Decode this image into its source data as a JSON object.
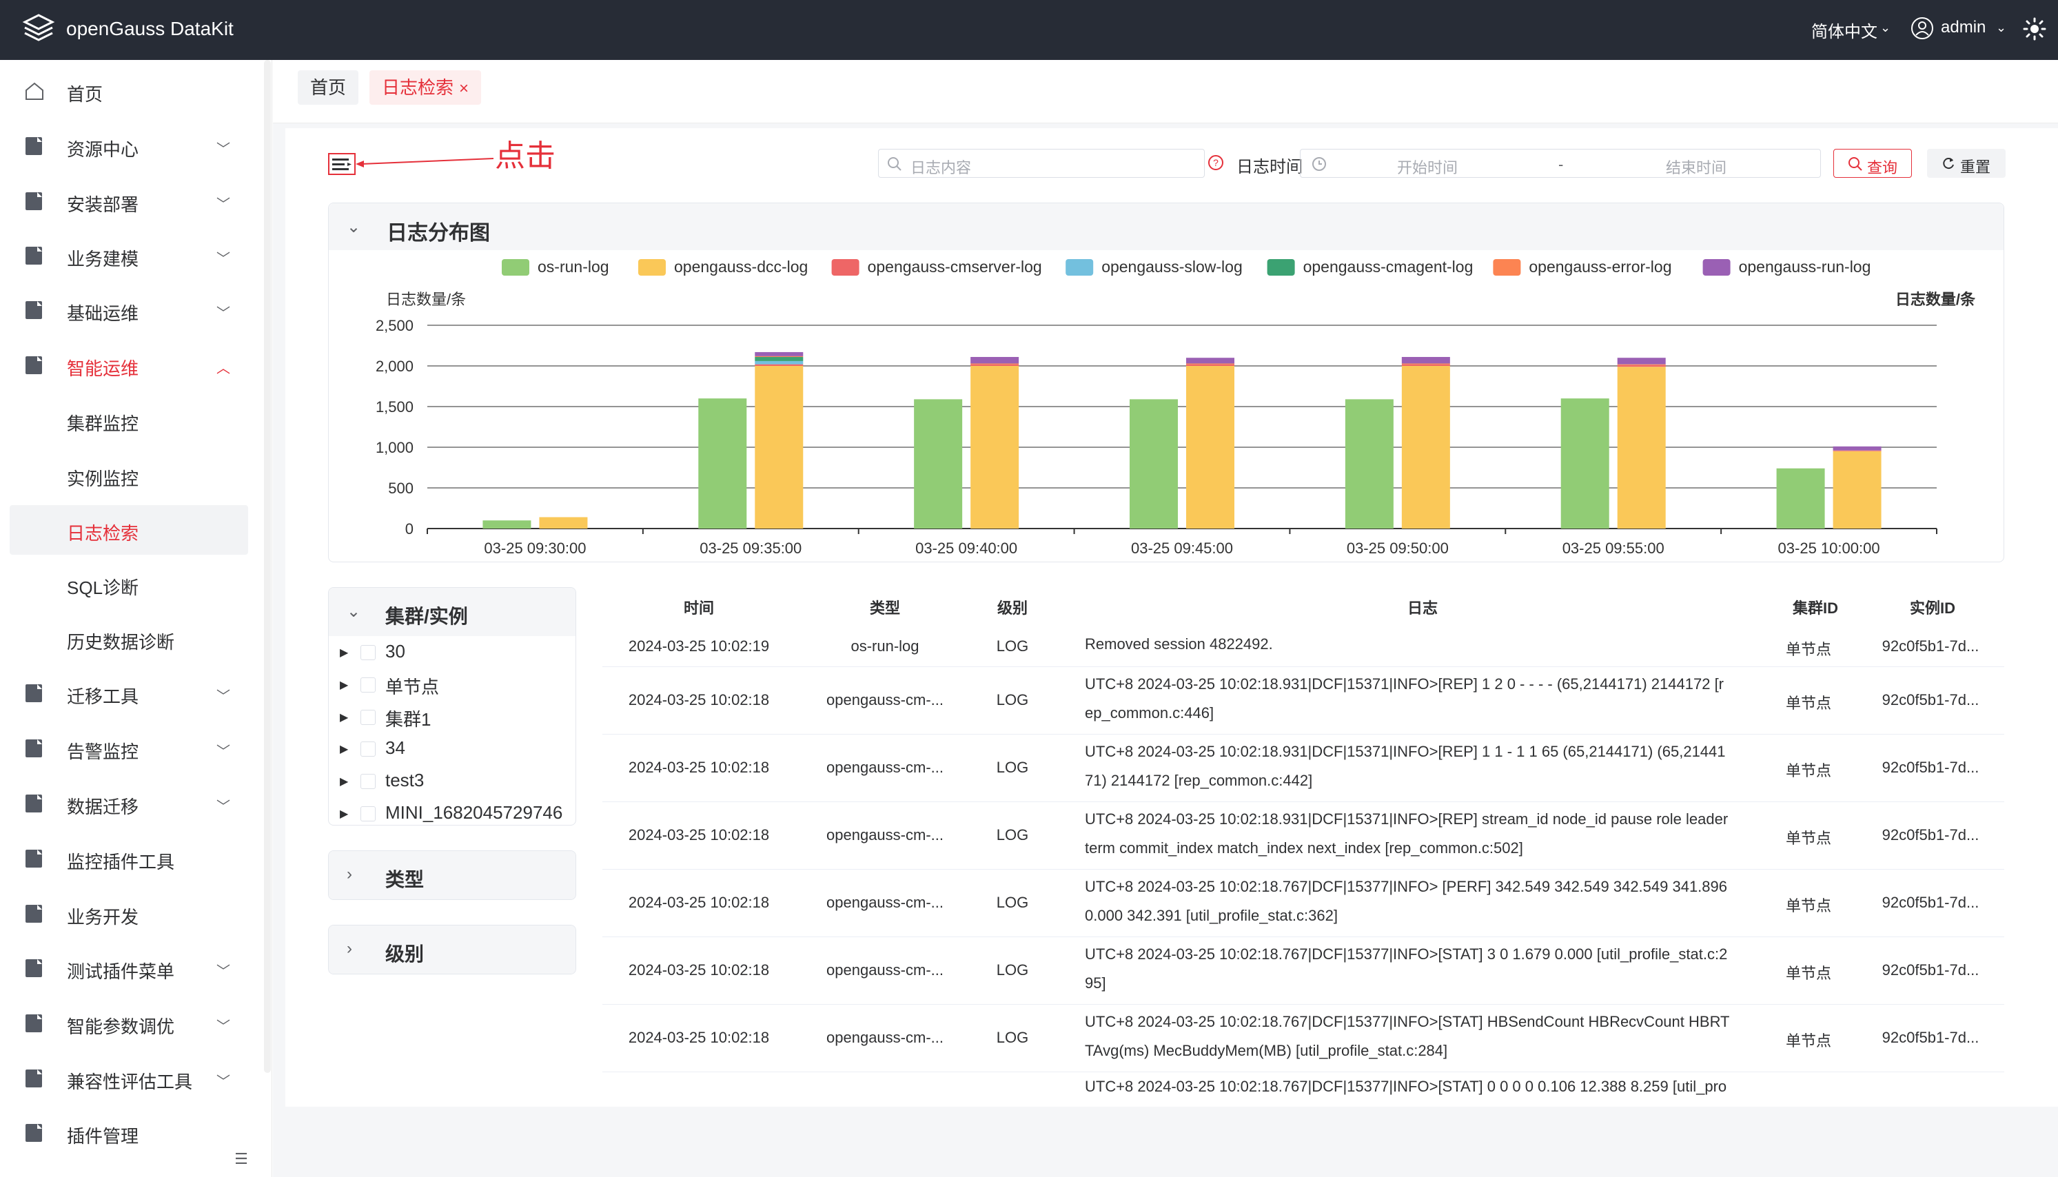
{
  "header": {
    "app_title": "openGauss DataKit",
    "language": "简体中文",
    "user": "admin"
  },
  "sidebar": {
    "items": [
      {
        "label": "首页"
      },
      {
        "label": "资源中心"
      },
      {
        "label": "安装部署"
      },
      {
        "label": "业务建模"
      },
      {
        "label": "基础运维"
      },
      {
        "label": "智能运维"
      },
      {
        "label": "集群监控"
      },
      {
        "label": "实例监控"
      },
      {
        "label": "日志检索"
      },
      {
        "label": "SQL诊断"
      },
      {
        "label": "历史数据诊断"
      },
      {
        "label": "迁移工具"
      },
      {
        "label": "告警监控"
      },
      {
        "label": "数据迁移"
      },
      {
        "label": "监控插件工具"
      },
      {
        "label": "业务开发"
      },
      {
        "label": "测试插件菜单"
      },
      {
        "label": "智能参数调优"
      },
      {
        "label": "兼容性评估工具"
      },
      {
        "label": "插件管理"
      }
    ]
  },
  "tabs": {
    "home": "首页",
    "log_search": "日志检索",
    "close": "×"
  },
  "toolbar": {
    "annotation": "点击",
    "search_placeholder": "日志内容",
    "time_label": "日志时间",
    "start_placeholder": "开始时间",
    "separator": "-",
    "end_placeholder": "结束时间",
    "query": "查询",
    "reset": "重置"
  },
  "chart_panel": {
    "title": "日志分布图"
  },
  "chart_data": {
    "type": "bar",
    "ylabel_left": "日志数量/条",
    "ylabel_right": "日志数量/条",
    "ylim": [
      0,
      2500
    ],
    "yticks": [
      "2,500",
      "2,000",
      "1,500",
      "1,000",
      "500",
      "0"
    ],
    "categories": [
      "03-25 09:30:00",
      "03-25 09:35:00",
      "03-25 09:40:00",
      "03-25 09:45:00",
      "03-25 09:50:00",
      "03-25 09:55:00",
      "03-25 10:00:00"
    ],
    "legend_position": "top",
    "series": [
      {
        "name": "os-run-log",
        "color": "#91cc75",
        "values": [
          100,
          1600,
          1590,
          1590,
          1590,
          1600,
          740
        ]
      },
      {
        "name": "opengauss-dcc-log",
        "color": "#fac858",
        "values": [
          140,
          2000,
          2000,
          2000,
          2000,
          1990,
          950
        ]
      },
      {
        "name": "opengauss-cmserver-log",
        "color": "#ee6666",
        "values": [
          0,
          20,
          20,
          20,
          20,
          20,
          5
        ]
      },
      {
        "name": "opengauss-slow-log",
        "color": "#73c0de",
        "values": [
          0,
          40,
          0,
          0,
          0,
          0,
          0
        ]
      },
      {
        "name": "opengauss-cmagent-log",
        "color": "#3ba272",
        "values": [
          0,
          50,
          0,
          0,
          0,
          0,
          0
        ]
      },
      {
        "name": "opengauss-error-log",
        "color": "#fc8452",
        "values": [
          0,
          10,
          10,
          10,
          10,
          10,
          5
        ]
      },
      {
        "name": "opengauss-run-log",
        "color": "#9a60b4",
        "values": [
          0,
          50,
          80,
          70,
          80,
          80,
          50
        ]
      }
    ]
  },
  "filters": {
    "cluster": {
      "title": "集群/实例",
      "items": [
        "30",
        "单节点",
        "集群1",
        "34",
        "test3",
        "MINI_1682045729746"
      ]
    },
    "type_title": "类型",
    "level_title": "级别"
  },
  "table": {
    "headers": [
      "时间",
      "类型",
      "级别",
      "日志",
      "集群ID",
      "实例ID"
    ],
    "rows": [
      {
        "time": "2024-03-25 10:02:19",
        "type": "os-run-log",
        "level": "LOG",
        "log1": "Removed session 4822492.",
        "log2": "",
        "cluster": "单节点",
        "instance": "92c0f5b1-7d..."
      },
      {
        "time": "2024-03-25 10:02:18",
        "type": "opengauss-cm-...",
        "level": "LOG",
        "log1": "UTC+8 2024-03-25 10:02:18.931|DCF|15371|INFO>[REP] 1 2 0 - - - - (65,2144171) 2144172 [r",
        "log2": "ep_common.c:446]",
        "cluster": "单节点",
        "instance": "92c0f5b1-7d..."
      },
      {
        "time": "2024-03-25 10:02:18",
        "type": "opengauss-cm-...",
        "level": "LOG",
        "log1": "UTC+8 2024-03-25 10:02:18.931|DCF|15371|INFO>[REP] 1 1 - 1 1 65 (65,2144171) (65,21441",
        "log2": "71) 2144172 [rep_common.c:442]",
        "cluster": "单节点",
        "instance": "92c0f5b1-7d..."
      },
      {
        "time": "2024-03-25 10:02:18",
        "type": "opengauss-cm-...",
        "level": "LOG",
        "log1": "UTC+8 2024-03-25 10:02:18.931|DCF|15371|INFO>[REP] stream_id node_id pause role leader",
        "log2": "term commit_index match_index next_index [rep_common.c:502]",
        "cluster": "单节点",
        "instance": "92c0f5b1-7d..."
      },
      {
        "time": "2024-03-25 10:02:18",
        "type": "opengauss-cm-...",
        "level": "LOG",
        "log1": "UTC+8 2024-03-25 10:02:18.767|DCF|15377|INFO> [PERF] 342.549 342.549 342.549 341.896",
        "log2": "0.000 342.391 [util_profile_stat.c:362]",
        "cluster": "单节点",
        "instance": "92c0f5b1-7d..."
      },
      {
        "time": "2024-03-25 10:02:18",
        "type": "opengauss-cm-...",
        "level": "LOG",
        "log1": "UTC+8 2024-03-25 10:02:18.767|DCF|15377|INFO>[STAT] 3 0 1.679 0.000 [util_profile_stat.c:2",
        "log2": "95]",
        "cluster": "单节点",
        "instance": "92c0f5b1-7d..."
      },
      {
        "time": "2024-03-25 10:02:18",
        "type": "opengauss-cm-...",
        "level": "LOG",
        "log1": "UTC+8 2024-03-25 10:02:18.767|DCF|15377|INFO>[STAT] HBSendCount HBRecvCount HBRT",
        "log2": "TAvg(ms) MecBuddyMem(MB) [util_profile_stat.c:284]",
        "cluster": "单节点",
        "instance": "92c0f5b1-7d..."
      },
      {
        "time": "",
        "type": "",
        "level": "",
        "log1": "UTC+8 2024-03-25 10:02:18.767|DCF|15377|INFO>[STAT] 0 0 0 0 0.106 12.388 8.259 [util_pro",
        "log2": "",
        "cluster": "",
        "instance": ""
      }
    ]
  }
}
